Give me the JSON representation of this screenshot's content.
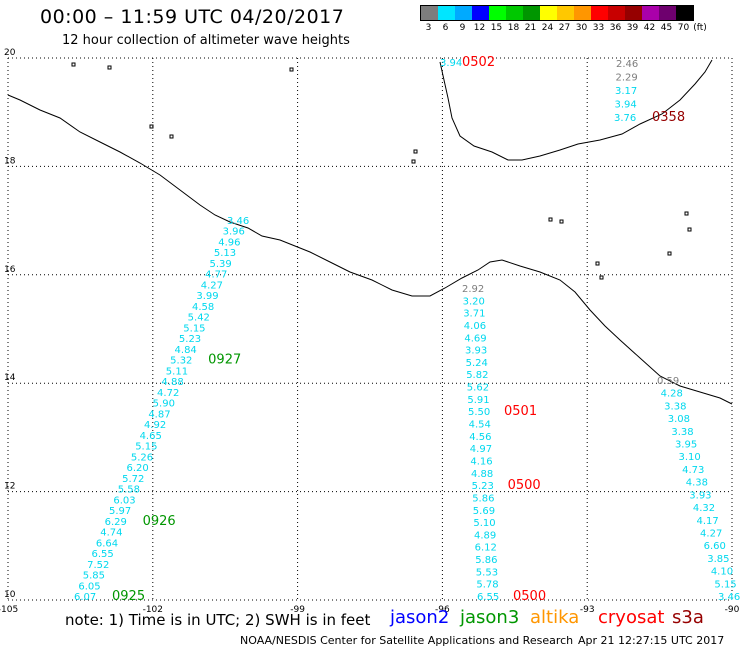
{
  "header": {
    "title": "00:00 – 11:59 UTC 04/20/2017",
    "subtitle": "12 hour collection of altimeter wave heights"
  },
  "legend": {
    "unit": "(ft)",
    "items": [
      {
        "label": "3",
        "color": "#7d7d7d"
      },
      {
        "label": "6",
        "color": "#00e6ff"
      },
      {
        "label": "9",
        "color": "#00aaff"
      },
      {
        "label": "12",
        "color": "#0000ff"
      },
      {
        "label": "15",
        "color": "#00ff00"
      },
      {
        "label": "18",
        "color": "#00c800"
      },
      {
        "label": "21",
        "color": "#009600"
      },
      {
        "label": "24",
        "color": "#ffff00"
      },
      {
        "label": "27",
        "color": "#ffc800"
      },
      {
        "label": "30",
        "color": "#ff9600"
      },
      {
        "label": "33",
        "color": "#ff0000"
      },
      {
        "label": "36",
        "color": "#c80000"
      },
      {
        "label": "39",
        "color": "#960000"
      },
      {
        "label": "42",
        "color": "#aa00aa"
      },
      {
        "label": "45",
        "color": "#6e006e"
      },
      {
        "label": "70",
        "color": "#000000"
      }
    ]
  },
  "map": {
    "lon_range": [
      -105,
      -90
    ],
    "lat_range": [
      10,
      20
    ],
    "lon_ticks": [
      "-105",
      "-102",
      "-99",
      "-96",
      "-93",
      "-90"
    ],
    "lat_ticks": [
      "20",
      "18",
      "16",
      "14",
      "12",
      "10"
    ]
  },
  "colors": {
    "wave_text": "#00d8ee",
    "gray_text": "#7d7d7d",
    "jason2": "#0000ff",
    "jason3": "#009600",
    "altika": "#ff9600",
    "cryosat": "#ff0000",
    "s3a": "#960000"
  },
  "tracks": [
    {
      "id": "jason3-track",
      "waves": [
        "3.46",
        "3.96",
        "4.96",
        "5.13",
        "5.39",
        "4.77",
        "4.27",
        "3.99",
        "4.58",
        "5.42",
        "5.15",
        "5.23",
        "4.84",
        "5.32",
        "5.11",
        "4.88",
        "4.72",
        "5.90",
        "4.87",
        "4.92",
        "4.65",
        "5.15",
        "5.26",
        "6.20",
        "5.72",
        "5.58",
        "6.03",
        "5.97",
        "6.29",
        "4.74",
        "6.64",
        "6.55",
        "7.52",
        "5.85",
        "6.05",
        "6.07"
      ],
      "times": [
        {
          "label": "0927",
          "after": 13
        },
        {
          "label": "0926",
          "after": 28
        },
        {
          "label": "0925",
          "after": 35
        }
      ],
      "time_color": "jason3"
    },
    {
      "id": "cryosat-track",
      "waves": [
        "2.92",
        "3.20",
        "3.71",
        "4.06",
        "4.69",
        "3.93",
        "5.24",
        "5.82",
        "5.62",
        "5.91",
        "5.50",
        "4.54",
        "4.56",
        "4.97",
        "4.16",
        "4.88",
        "5.23",
        "5.86",
        "5.69",
        "5.10",
        "4.89",
        "6.12",
        "5.86",
        "5.53",
        "5.78",
        "6.55"
      ],
      "times": [
        {
          "label": "0501",
          "after": 10
        },
        {
          "label": "0500",
          "after": 16
        },
        {
          "label": "0500",
          "after": 25
        }
      ],
      "time_color": "cryosat"
    },
    {
      "id": "s3a-track",
      "waves": [
        "0.59",
        "4.28",
        "3.38",
        "3.08",
        "3.38",
        "3.95",
        "3.10",
        "4.73",
        "4.38",
        "3.93",
        "4.32",
        "4.17",
        "4.27",
        "6.60",
        "3.85",
        "4.10",
        "5.15",
        "3.46"
      ],
      "times": [],
      "time_color": "s3a"
    },
    {
      "id": "top-cryosat",
      "waves": [
        "3.94"
      ],
      "times": [
        {
          "label": "0502",
          "after": 0
        }
      ],
      "time_color": "cryosat"
    },
    {
      "id": "top-s3a",
      "waves": [
        "2.46",
        "2.29",
        "3.17",
        "3.94",
        "3.76"
      ],
      "times": [
        {
          "label": "0358",
          "after": 4
        }
      ],
      "time_color": "s3a"
    }
  ],
  "footer": {
    "note": "note:  1) Time is in UTC;  2) SWH is in feet",
    "satellites": [
      {
        "label": "jason2",
        "color": "jason2"
      },
      {
        "label": "jason3",
        "color": "jason3"
      },
      {
        "label": "altika",
        "color": "altika"
      },
      {
        "label": "cryosat",
        "color": "cryosat"
      },
      {
        "label": "s3a",
        "color": "s3a"
      }
    ],
    "center": "NOAA/NESDIS Center for Satellite Applications and Research",
    "timestamp": "Apr 21 12:27:15 UTC 2017"
  }
}
